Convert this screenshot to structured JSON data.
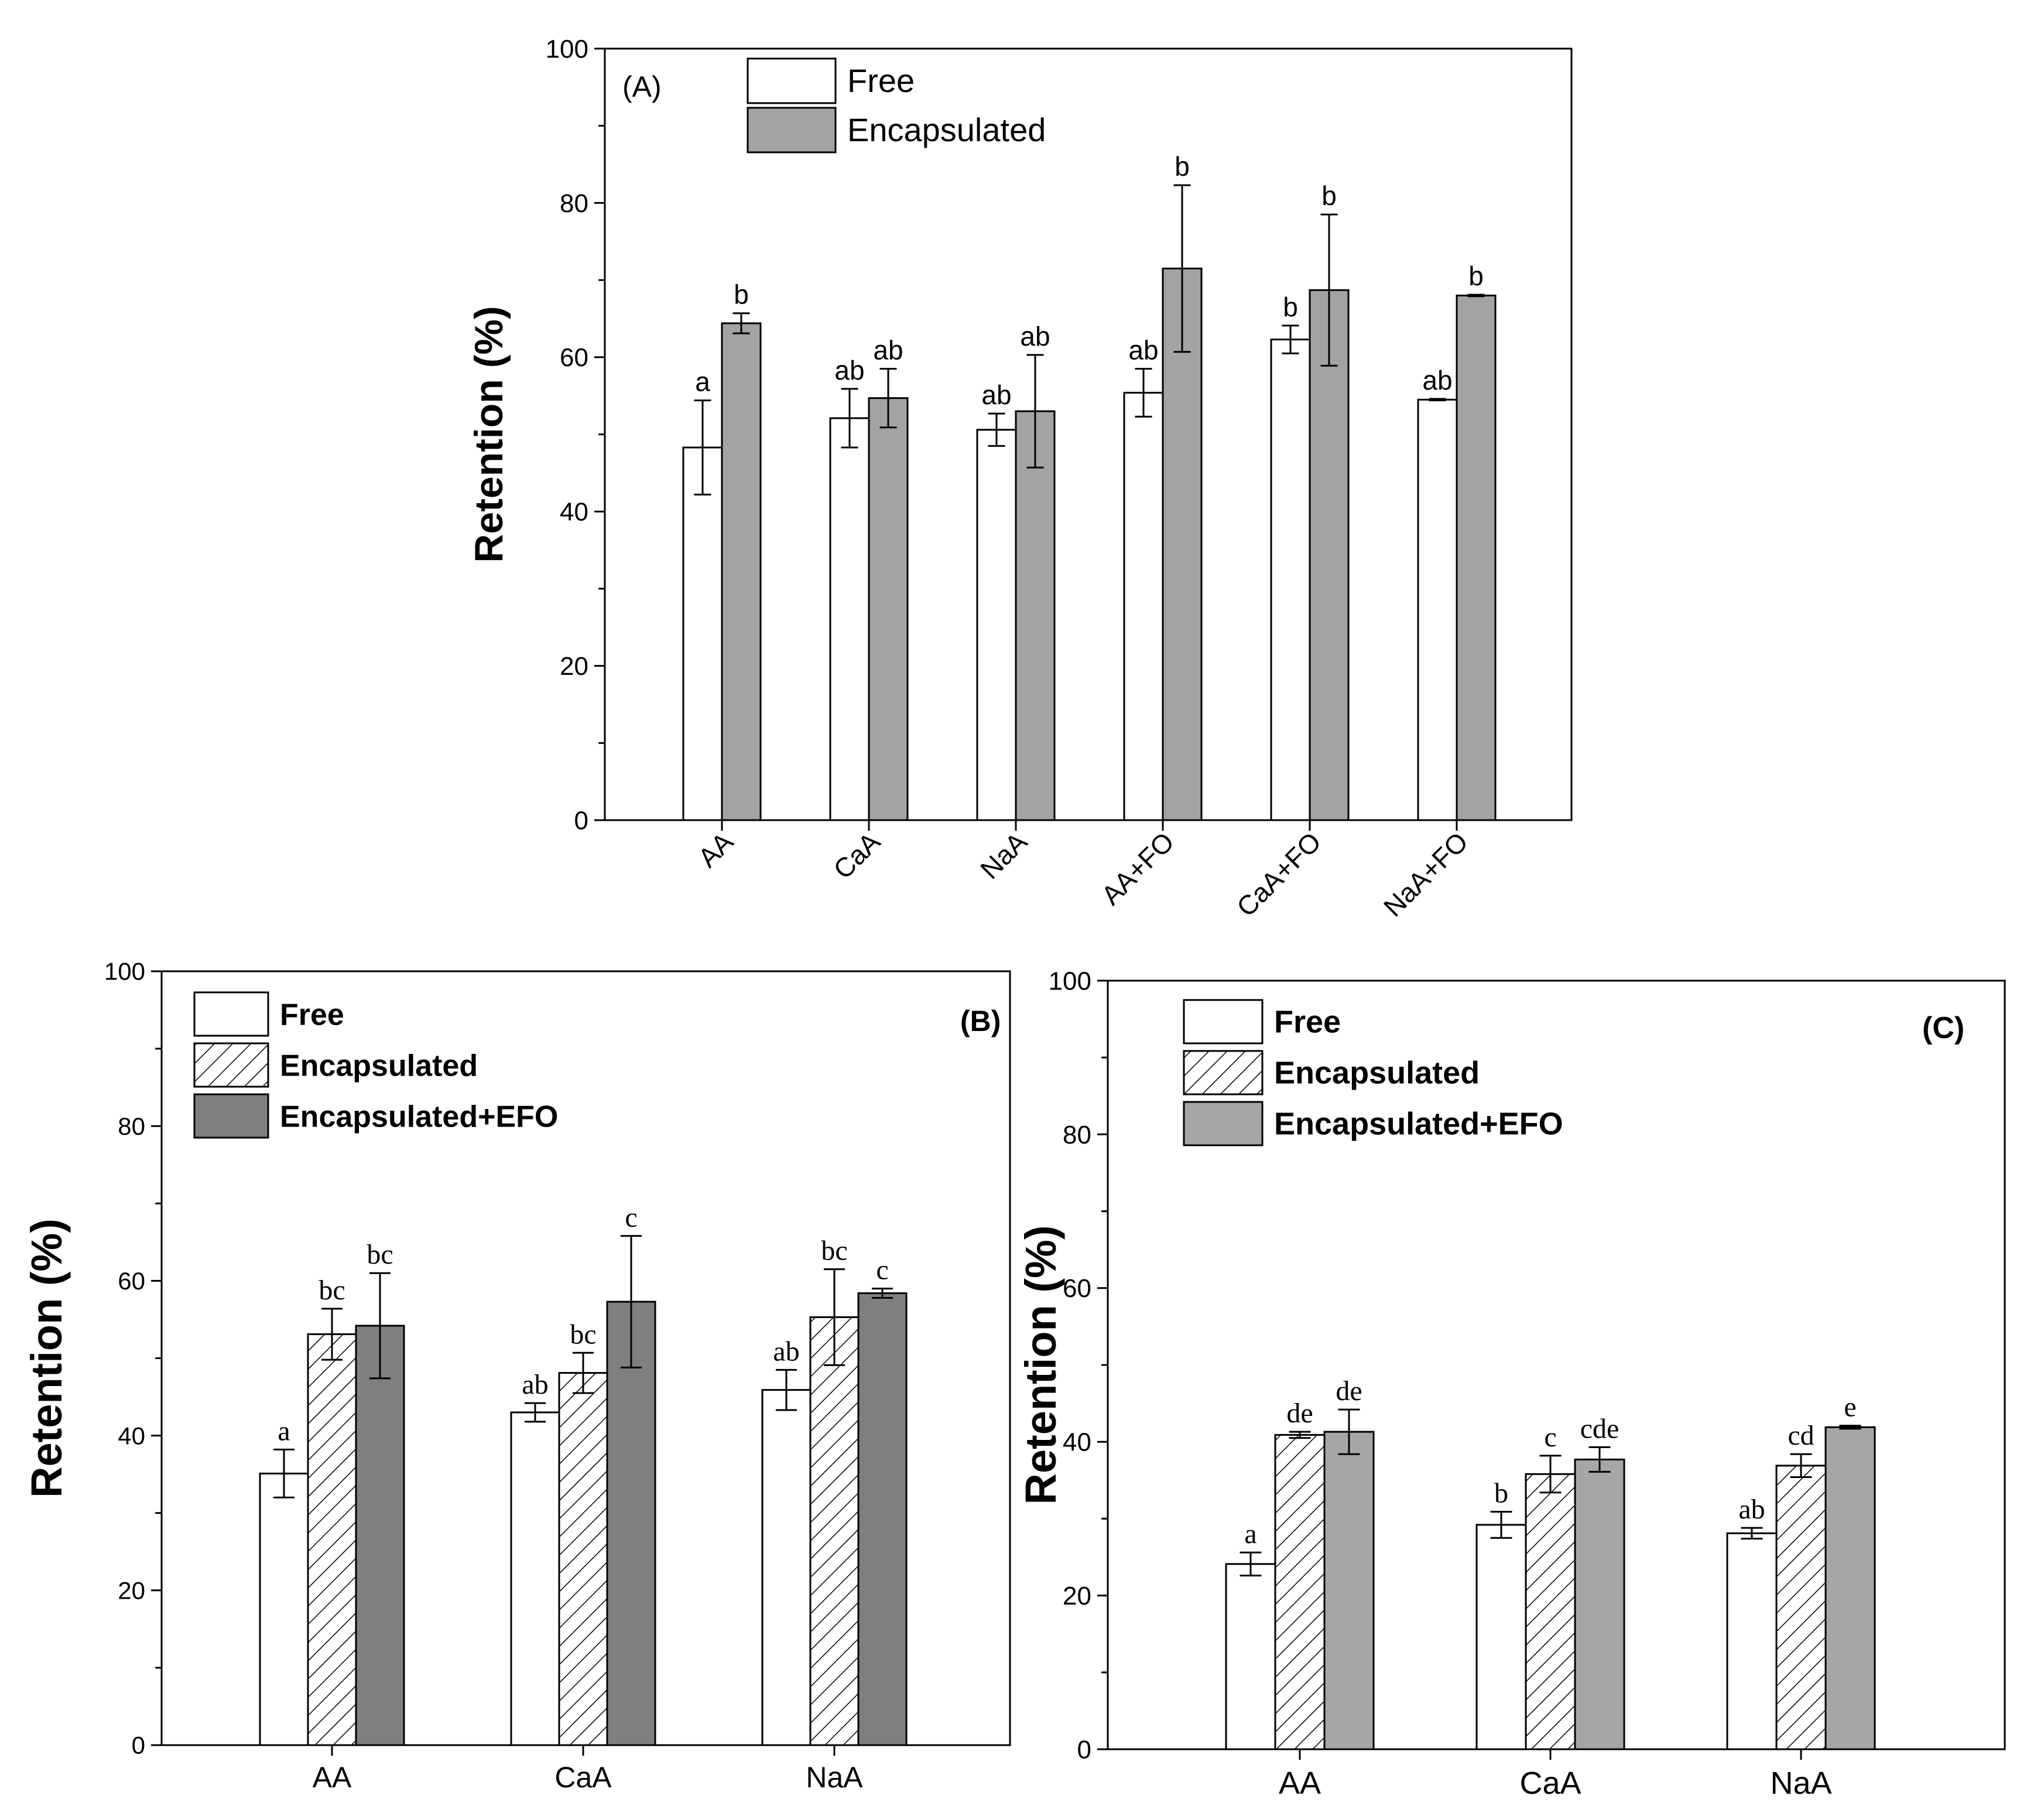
{
  "colors": {
    "free": "#ffffff",
    "encapsulated_a": "#a3a3a3",
    "encapsulated_b_hatch": "#ffffff",
    "efo_b": "#7f7f7f",
    "efo_c": "#a6a6a6",
    "axis": "#000000"
  },
  "chart_data": [
    {
      "panel": "(A)",
      "type": "bar",
      "ylabel": "Retention (%)",
      "xlabel": "",
      "ylim": [
        0,
        100
      ],
      "yticks": [
        "0",
        "20",
        "40",
        "60",
        "80",
        "100"
      ],
      "legend_position": "top-left",
      "categories": [
        "AA",
        "CaA",
        "NaA",
        "AA+FO",
        "CaA+FO",
        "NaA+FO"
      ],
      "series": [
        {
          "name": "Free",
          "fill": "free",
          "values": [
            48.3,
            52.1,
            50.6,
            55.4,
            62.3,
            54.5
          ],
          "errors": [
            6.1,
            3.8,
            2.1,
            3.1,
            1.8,
            0.1
          ],
          "letters": [
            "a",
            "ab",
            "ab",
            "ab",
            "b",
            "ab"
          ]
        },
        {
          "name": "Encapsulated",
          "fill": "encapsulated_a",
          "values": [
            64.4,
            54.7,
            53.0,
            71.5,
            68.7,
            68.0
          ],
          "errors": [
            1.3,
            3.8,
            7.3,
            10.8,
            9.8,
            0.1
          ],
          "letters": [
            "b",
            "ab",
            "ab",
            "b",
            "b",
            "b"
          ]
        }
      ]
    },
    {
      "panel": "(B)",
      "type": "bar",
      "ylabel": "Retention (%)",
      "xlabel": "",
      "ylim": [
        0,
        100
      ],
      "yticks": [
        "0",
        "20",
        "40",
        "60",
        "80",
        "100"
      ],
      "legend_position": "top-left",
      "categories": [
        "AA",
        "CaA",
        "NaA"
      ],
      "series": [
        {
          "name": "Free",
          "fill": "free",
          "values": [
            35.1,
            43.0,
            45.9
          ],
          "errors": [
            3.1,
            1.2,
            2.6
          ],
          "letters": [
            "a",
            "ab",
            "ab"
          ]
        },
        {
          "name": "Encapsulated",
          "fill": "hatch",
          "values": [
            53.1,
            48.1,
            55.3
          ],
          "errors": [
            3.3,
            2.6,
            6.2
          ],
          "letters": [
            "bc",
            "bc",
            "bc"
          ]
        },
        {
          "name": "Encapsulated+EFO",
          "fill": "efo_b",
          "values": [
            54.2,
            57.3,
            58.4
          ],
          "errors": [
            6.8,
            8.5,
            0.6
          ],
          "letters": [
            "bc",
            "c",
            "c"
          ]
        }
      ]
    },
    {
      "panel": "(C)",
      "type": "bar",
      "ylabel": "Retention (%)",
      "xlabel": "",
      "ylim": [
        0,
        100
      ],
      "yticks": [
        "0",
        "20",
        "40",
        "60",
        "80",
        "100"
      ],
      "legend_position": "top-left",
      "categories": [
        "AA",
        "CaA",
        "NaA"
      ],
      "series": [
        {
          "name": "Free",
          "fill": "free",
          "values": [
            24.1,
            29.2,
            28.1
          ],
          "errors": [
            1.5,
            1.7,
            0.7
          ],
          "letters": [
            "a",
            "b",
            "ab"
          ]
        },
        {
          "name": "Encapsulated",
          "fill": "hatch",
          "values": [
            40.9,
            35.8,
            36.9
          ],
          "errors": [
            0.4,
            2.4,
            1.5
          ],
          "letters": [
            "de",
            "c",
            "cd"
          ]
        },
        {
          "name": "Encapsulated+EFO",
          "fill": "efo_c",
          "values": [
            41.3,
            37.7,
            41.9
          ],
          "errors": [
            2.9,
            1.6,
            0.2
          ],
          "letters": [
            "de",
            "cde",
            "e"
          ]
        }
      ]
    }
  ]
}
